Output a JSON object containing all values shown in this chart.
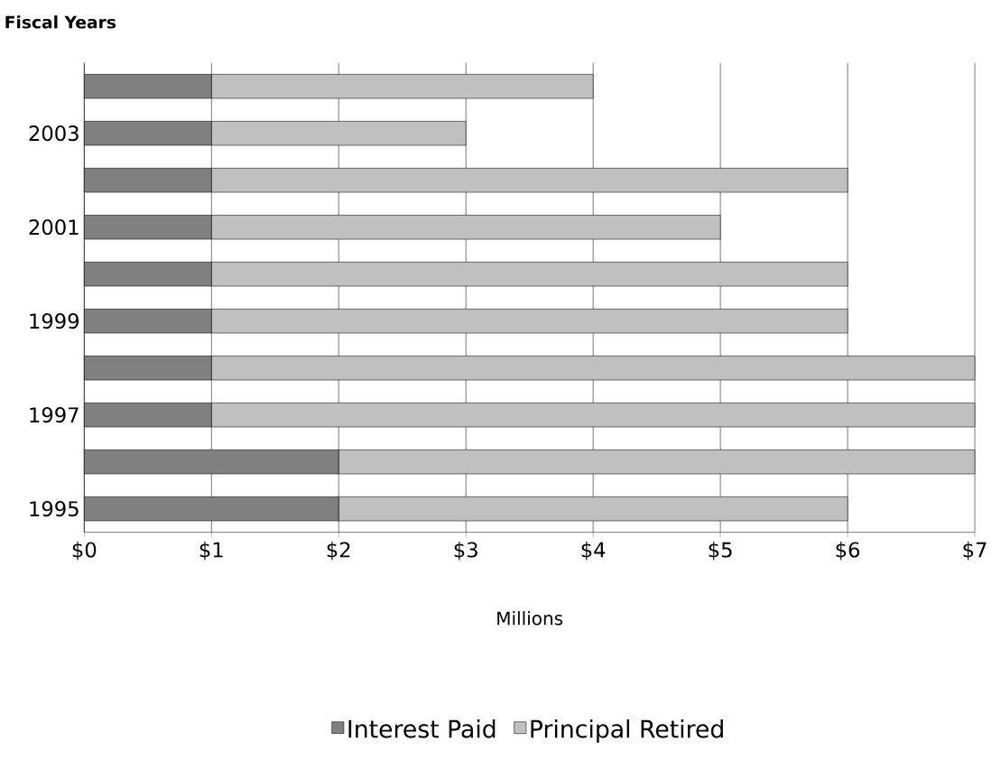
{
  "chart_data": {
    "type": "bar",
    "orientation": "horizontal",
    "stacked": true,
    "ylabel": "Fiscal Years",
    "xlabel": "Millions",
    "categories": [
      null,
      "2003",
      null,
      "2001",
      null,
      "1999",
      null,
      "1997",
      null,
      "1995"
    ],
    "series": [
      {
        "name": "Interest Paid",
        "color": "#808080",
        "values": [
          1,
          1,
          1,
          1,
          1,
          1,
          1,
          1,
          2,
          2
        ]
      },
      {
        "name": "Principal Retired",
        "color": "#c0c0c0",
        "values": [
          3,
          2,
          5,
          4,
          5,
          5,
          6,
          6,
          5,
          4
        ]
      }
    ],
    "xlim": [
      0,
      7
    ],
    "xticks": [
      {
        "value": 0,
        "label": "$0"
      },
      {
        "value": 1,
        "label": "$1"
      },
      {
        "value": 2,
        "label": "$2"
      },
      {
        "value": 3,
        "label": "$3"
      },
      {
        "value": 4,
        "label": "$4"
      },
      {
        "value": 5,
        "label": "$5"
      },
      {
        "value": 6,
        "label": "$6"
      },
      {
        "value": 7,
        "label": "$7"
      }
    ],
    "grid": "x",
    "legend": "bottom"
  }
}
